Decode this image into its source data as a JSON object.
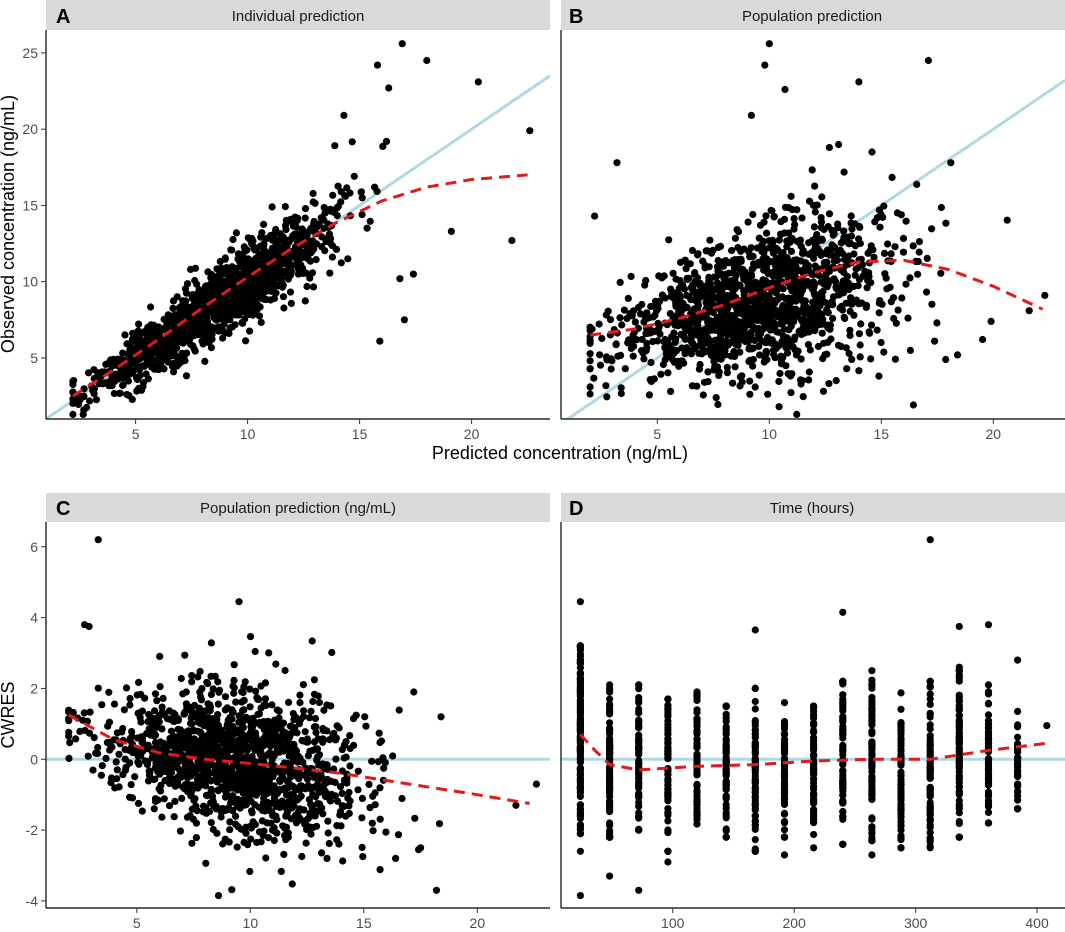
{
  "colors": {
    "points": "#000000",
    "identity_line": "#add8e6",
    "loess_line": "#e31a1c",
    "strip_background": "#d9d9d9",
    "axis": "#000000"
  },
  "chart_data": [
    {
      "tag": "A",
      "type": "scatter",
      "strip_title": "Individual prediction",
      "xlim": [
        1.0,
        23.5
      ],
      "ylim": [
        1.0,
        26.5
      ],
      "xticks": [
        5,
        10,
        15,
        20
      ],
      "yticks": [
        5,
        10,
        15,
        20,
        25
      ],
      "reference_line": {
        "kind": "identity",
        "x": [
          1.0,
          23.5
        ],
        "y": [
          1.0,
          23.5
        ]
      },
      "trend_line": {
        "x": [
          2.2,
          4,
          6,
          8,
          10,
          12,
          14,
          16,
          18,
          20,
          22.5
        ],
        "y": [
          2.5,
          4.2,
          6.2,
          8.3,
          10.3,
          12.2,
          13.9,
          15.3,
          16.2,
          16.7,
          17.0
        ]
      },
      "points": {
        "seed": 11,
        "count": 1400,
        "x_mean": 8.5,
        "x_sd": 2.6,
        "x_min": 2.2,
        "x_max": 17.5,
        "slope": 1.0,
        "intercept": 0.0,
        "noise_sd": 1.1,
        "extra": [
          [
            20.3,
            23.1
          ],
          [
            22.6,
            19.9
          ],
          [
            21.8,
            12.7
          ],
          [
            19.1,
            13.3
          ],
          [
            18.0,
            24.5
          ],
          [
            16.9,
            25.6
          ],
          [
            15.8,
            24.2
          ],
          [
            16.3,
            22.7
          ],
          [
            17.0,
            7.5
          ],
          [
            15.9,
            6.1
          ],
          [
            17.4,
            10.5
          ],
          [
            16.8,
            10.2
          ],
          [
            14.3,
            20.9
          ],
          [
            16.2,
            19.2
          ]
        ]
      }
    },
    {
      "tag": "B",
      "type": "scatter",
      "strip_title": "Population prediction",
      "xlim": [
        0.7,
        23.2
      ],
      "ylim": [
        1.0,
        26.5
      ],
      "xticks": [
        5,
        10,
        15,
        20
      ],
      "yticks": [
        5,
        10,
        15,
        20,
        25
      ],
      "reference_line": {
        "kind": "identity",
        "x": [
          0.7,
          23.2
        ],
        "y": [
          0.7,
          23.2
        ]
      },
      "trend_line": {
        "x": [
          2.0,
          4,
          6,
          8,
          10,
          12,
          14,
          16,
          18,
          20,
          22.2
        ],
        "y": [
          6.5,
          6.9,
          7.6,
          8.5,
          9.6,
          10.6,
          11.3,
          11.4,
          10.8,
          9.7,
          8.2
        ]
      },
      "points": {
        "seed": 23,
        "count": 1400,
        "x_mean": 9.3,
        "x_sd": 3.0,
        "x_min": 2.0,
        "x_max": 21.5,
        "slope": 0.35,
        "intercept": 5.2,
        "noise_sd": 2.2,
        "extra": [
          [
            10.0,
            25.6
          ],
          [
            9.8,
            24.2
          ],
          [
            10.7,
            22.6
          ],
          [
            17.1,
            24.5
          ],
          [
            14.0,
            23.1
          ],
          [
            21.6,
            8.1
          ],
          [
            22.3,
            9.1
          ],
          [
            19.9,
            7.4
          ],
          [
            3.2,
            17.8
          ],
          [
            2.2,
            14.3
          ],
          [
            18.4,
            5.2
          ],
          [
            18.1,
            17.8
          ],
          [
            16.3,
            5.5
          ],
          [
            9.2,
            20.9
          ]
        ]
      }
    },
    {
      "tag": "C",
      "type": "scatter",
      "strip_title": "Population prediction (ng/mL)",
      "xlim": [
        1.0,
        23.2
      ],
      "ylim": [
        -4.2,
        6.7
      ],
      "xticks": [
        5,
        10,
        15,
        20
      ],
      "yticks": [
        -4,
        -2,
        0,
        2,
        4,
        6
      ],
      "reference_line": {
        "kind": "horizontal",
        "x": [
          1.0,
          23.2
        ],
        "y": [
          0,
          0
        ]
      },
      "trend_line": {
        "x": [
          2.0,
          4,
          6,
          8,
          10,
          12,
          14,
          16,
          18,
          20,
          22.3
        ],
        "y": [
          1.25,
          0.55,
          0.18,
          0.0,
          -0.12,
          -0.25,
          -0.4,
          -0.6,
          -0.8,
          -1.0,
          -1.25
        ]
      },
      "points": {
        "seed": 37,
        "count": 1400,
        "x_mean": 9.3,
        "x_sd": 2.8,
        "x_min": 2.0,
        "x_max": 19.5,
        "slope": -0.1,
        "intercept": 0.9,
        "noise_sd": 0.95,
        "extra": [
          [
            3.3,
            6.2
          ],
          [
            9.5,
            4.45
          ],
          [
            2.7,
            3.8
          ],
          [
            2.9,
            3.75
          ],
          [
            18.2,
            -3.7
          ],
          [
            8.6,
            -3.85
          ],
          [
            22.6,
            -0.7
          ],
          [
            21.7,
            -1.3
          ],
          [
            17.5,
            -2.5
          ],
          [
            16.4,
            -2.8
          ],
          [
            18.4,
            1.2
          ],
          [
            17.2,
            1.9
          ]
        ]
      }
    },
    {
      "tag": "D",
      "type": "scatter",
      "strip_title": "Time (hours)",
      "xlim": [
        8,
        423
      ],
      "ylim": [
        -4.2,
        6.7
      ],
      "xticks": [
        100,
        200,
        300,
        400
      ],
      "yticks": [
        -4,
        -2,
        0,
        2,
        4,
        6
      ],
      "reference_line": {
        "kind": "horizontal",
        "x": [
          8,
          423
        ],
        "y": [
          0,
          0
        ]
      },
      "trend_line": {
        "x": [
          24,
          36,
          48,
          72,
          96,
          120,
          168,
          216,
          264,
          312,
          360,
          408
        ],
        "y": [
          0.7,
          0.25,
          -0.15,
          -0.3,
          -0.25,
          -0.2,
          -0.15,
          -0.05,
          0.0,
          0.0,
          0.25,
          0.45
        ]
      },
      "points": {
        "seed": 53,
        "groups": [
          {
            "x": 24,
            "n": 160,
            "lo": -2.1,
            "hi": 3.2
          },
          {
            "x": 48,
            "n": 90,
            "lo": -2.2,
            "hi": 2.1
          },
          {
            "x": 72,
            "n": 70,
            "lo": -2.0,
            "hi": 2.1
          },
          {
            "x": 96,
            "n": 75,
            "lo": -2.6,
            "hi": 1.7
          },
          {
            "x": 120,
            "n": 70,
            "lo": -2.0,
            "hi": 1.9
          },
          {
            "x": 144,
            "n": 70,
            "lo": -2.2,
            "hi": 1.5
          },
          {
            "x": 168,
            "n": 70,
            "lo": -2.6,
            "hi": 2.0
          },
          {
            "x": 192,
            "n": 70,
            "lo": -2.2,
            "hi": 1.6
          },
          {
            "x": 216,
            "n": 75,
            "lo": -2.5,
            "hi": 1.5
          },
          {
            "x": 240,
            "n": 70,
            "lo": -2.4,
            "hi": 2.2
          },
          {
            "x": 264,
            "n": 75,
            "lo": -2.3,
            "hi": 2.5
          },
          {
            "x": 288,
            "n": 70,
            "lo": -2.5,
            "hi": 1.9
          },
          {
            "x": 312,
            "n": 85,
            "lo": -2.5,
            "hi": 2.2
          },
          {
            "x": 336,
            "n": 80,
            "lo": -2.2,
            "hi": 2.6
          },
          {
            "x": 360,
            "n": 75,
            "lo": -1.8,
            "hi": 2.1
          },
          {
            "x": 384,
            "n": 40,
            "lo": -1.4,
            "hi": 1.4
          }
        ],
        "extra": [
          [
            24,
            4.45
          ],
          [
            24,
            -2.6
          ],
          [
            24,
            -3.85
          ],
          [
            48,
            -3.3
          ],
          [
            72,
            -3.7
          ],
          [
            96,
            -2.9
          ],
          [
            168,
            3.65
          ],
          [
            240,
            4.15
          ],
          [
            312,
            6.2
          ],
          [
            336,
            3.75
          ],
          [
            360,
            3.8
          ],
          [
            384,
            2.8
          ],
          [
            408,
            0.95
          ],
          [
            192,
            -2.7
          ],
          [
            264,
            -2.7
          ]
        ]
      }
    }
  ],
  "shared_axes": {
    "top_xlabel": "Predicted concentration (ng/mL)",
    "top_ylabel": "Observed concentration (ng/mL)",
    "bottom_ylabel": "CWRES"
  }
}
